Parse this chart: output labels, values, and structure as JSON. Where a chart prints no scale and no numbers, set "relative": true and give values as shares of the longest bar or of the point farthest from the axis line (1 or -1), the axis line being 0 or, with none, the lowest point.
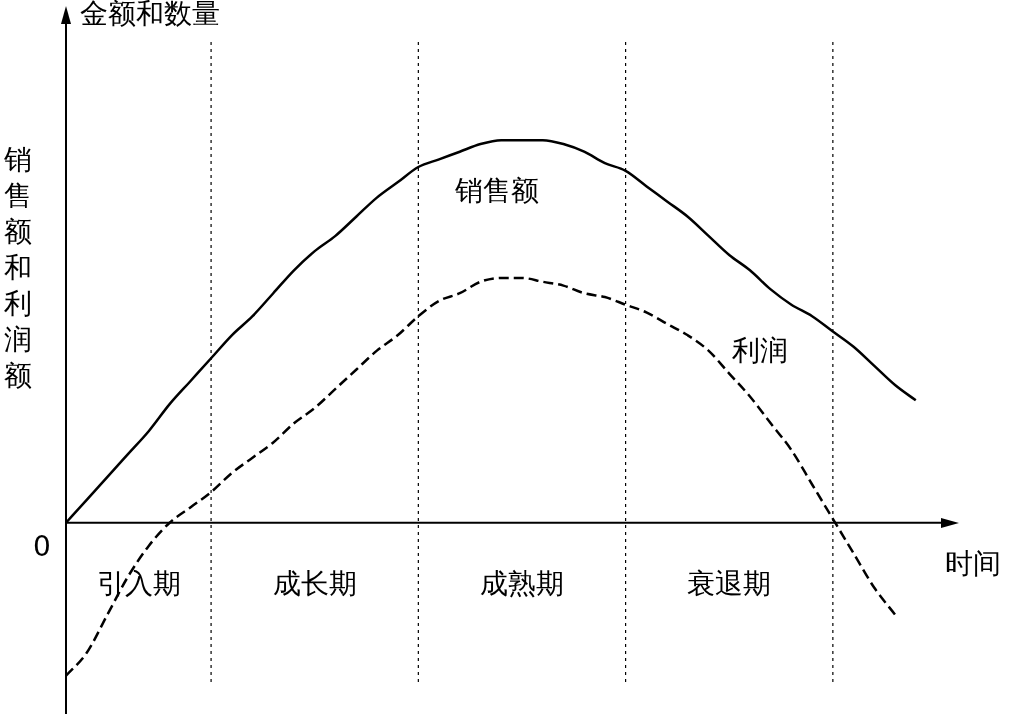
{
  "chart_data": {
    "type": "line",
    "relative": true,
    "ylabel": "销售额和利润额",
    "xlabel": "时间",
    "annotations": [
      "金额和数量",
      "0",
      "引入期",
      "成长期",
      "成熟期",
      "衰退期"
    ],
    "categories": [
      null,
      null,
      null,
      null,
      null,
      null,
      null,
      null,
      null,
      null,
      null,
      null,
      null,
      null,
      null,
      null,
      null,
      null,
      null,
      null,
      null,
      null,
      null,
      null,
      null,
      null,
      null,
      null,
      null,
      null,
      null,
      null,
      null,
      null,
      null,
      null,
      null,
      null,
      null,
      null,
      null,
      null
    ],
    "series": [
      {
        "name": "销售额",
        "color": "#000000",
        "line_style": "solid",
        "values": [
          0,
          0.06,
          0.12,
          0.18,
          0.24,
          0.31,
          0.37,
          0.43,
          0.49,
          0.54,
          0.6,
          0.66,
          0.71,
          0.75,
          0.8,
          0.85,
          0.89,
          0.93,
          0.95,
          0.97,
          0.99,
          1,
          1,
          1,
          0.99,
          0.97,
          0.94,
          0.92,
          0.88,
          0.84,
          0.8,
          0.75,
          0.7,
          0.66,
          0.61,
          0.57,
          0.54,
          0.5,
          0.46,
          0.41,
          0.36,
          0.32
        ]
      },
      {
        "name": "利润",
        "color": "#000000",
        "line_style": "dashed",
        "values": [
          -0.4,
          -0.34,
          -0.24,
          -0.14,
          -0.06,
          0,
          0.04,
          0.08,
          0.13,
          0.17,
          0.21,
          0.26,
          0.3,
          0.35,
          0.4,
          0.45,
          0.49,
          0.54,
          0.58,
          0.6,
          0.63,
          0.64,
          0.64,
          0.63,
          0.62,
          0.6,
          0.59,
          0.57,
          0.55,
          0.52,
          0.49,
          0.45,
          0.39,
          0.33,
          0.26,
          0.19,
          0.1,
          0.01,
          -0.08,
          -0.17,
          -0.24,
          null
        ]
      }
    ],
    "legend": false,
    "grid": "x",
    "marker": "none"
  }
}
